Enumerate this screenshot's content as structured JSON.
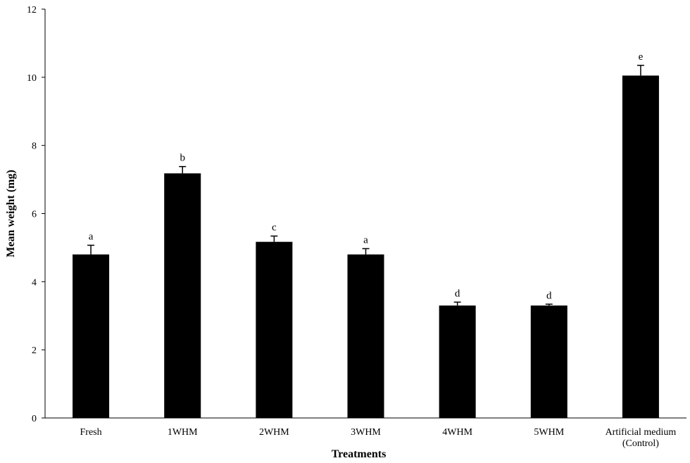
{
  "chart_data": {
    "type": "bar",
    "categories": [
      "Fresh",
      "1WHM",
      "2WHM",
      "3WHM",
      "4WHM",
      "5WHM",
      "Artificial medium (Control)"
    ],
    "category_lines": [
      [
        "Fresh"
      ],
      [
        "1WHM"
      ],
      [
        "2WHM"
      ],
      [
        "3WHM"
      ],
      [
        "4WHM"
      ],
      [
        "5WHM"
      ],
      [
        "Artificial medium",
        "(Control)"
      ]
    ],
    "values": [
      4.8,
      7.18,
      5.17,
      4.8,
      3.3,
      3.3,
      10.05
    ],
    "errors": [
      0.27,
      0.2,
      0.17,
      0.17,
      0.1,
      0.04,
      0.3
    ],
    "significance_letters": [
      "a",
      "b",
      "c",
      "a",
      "d",
      "d",
      "e"
    ],
    "xlabel": "Treatments",
    "ylabel": "Mean weight (mg)",
    "ylim": [
      0,
      12
    ],
    "yticks": [
      0,
      2,
      4,
      6,
      8,
      10,
      12
    ],
    "grid": false,
    "bar_color": "#000000"
  }
}
